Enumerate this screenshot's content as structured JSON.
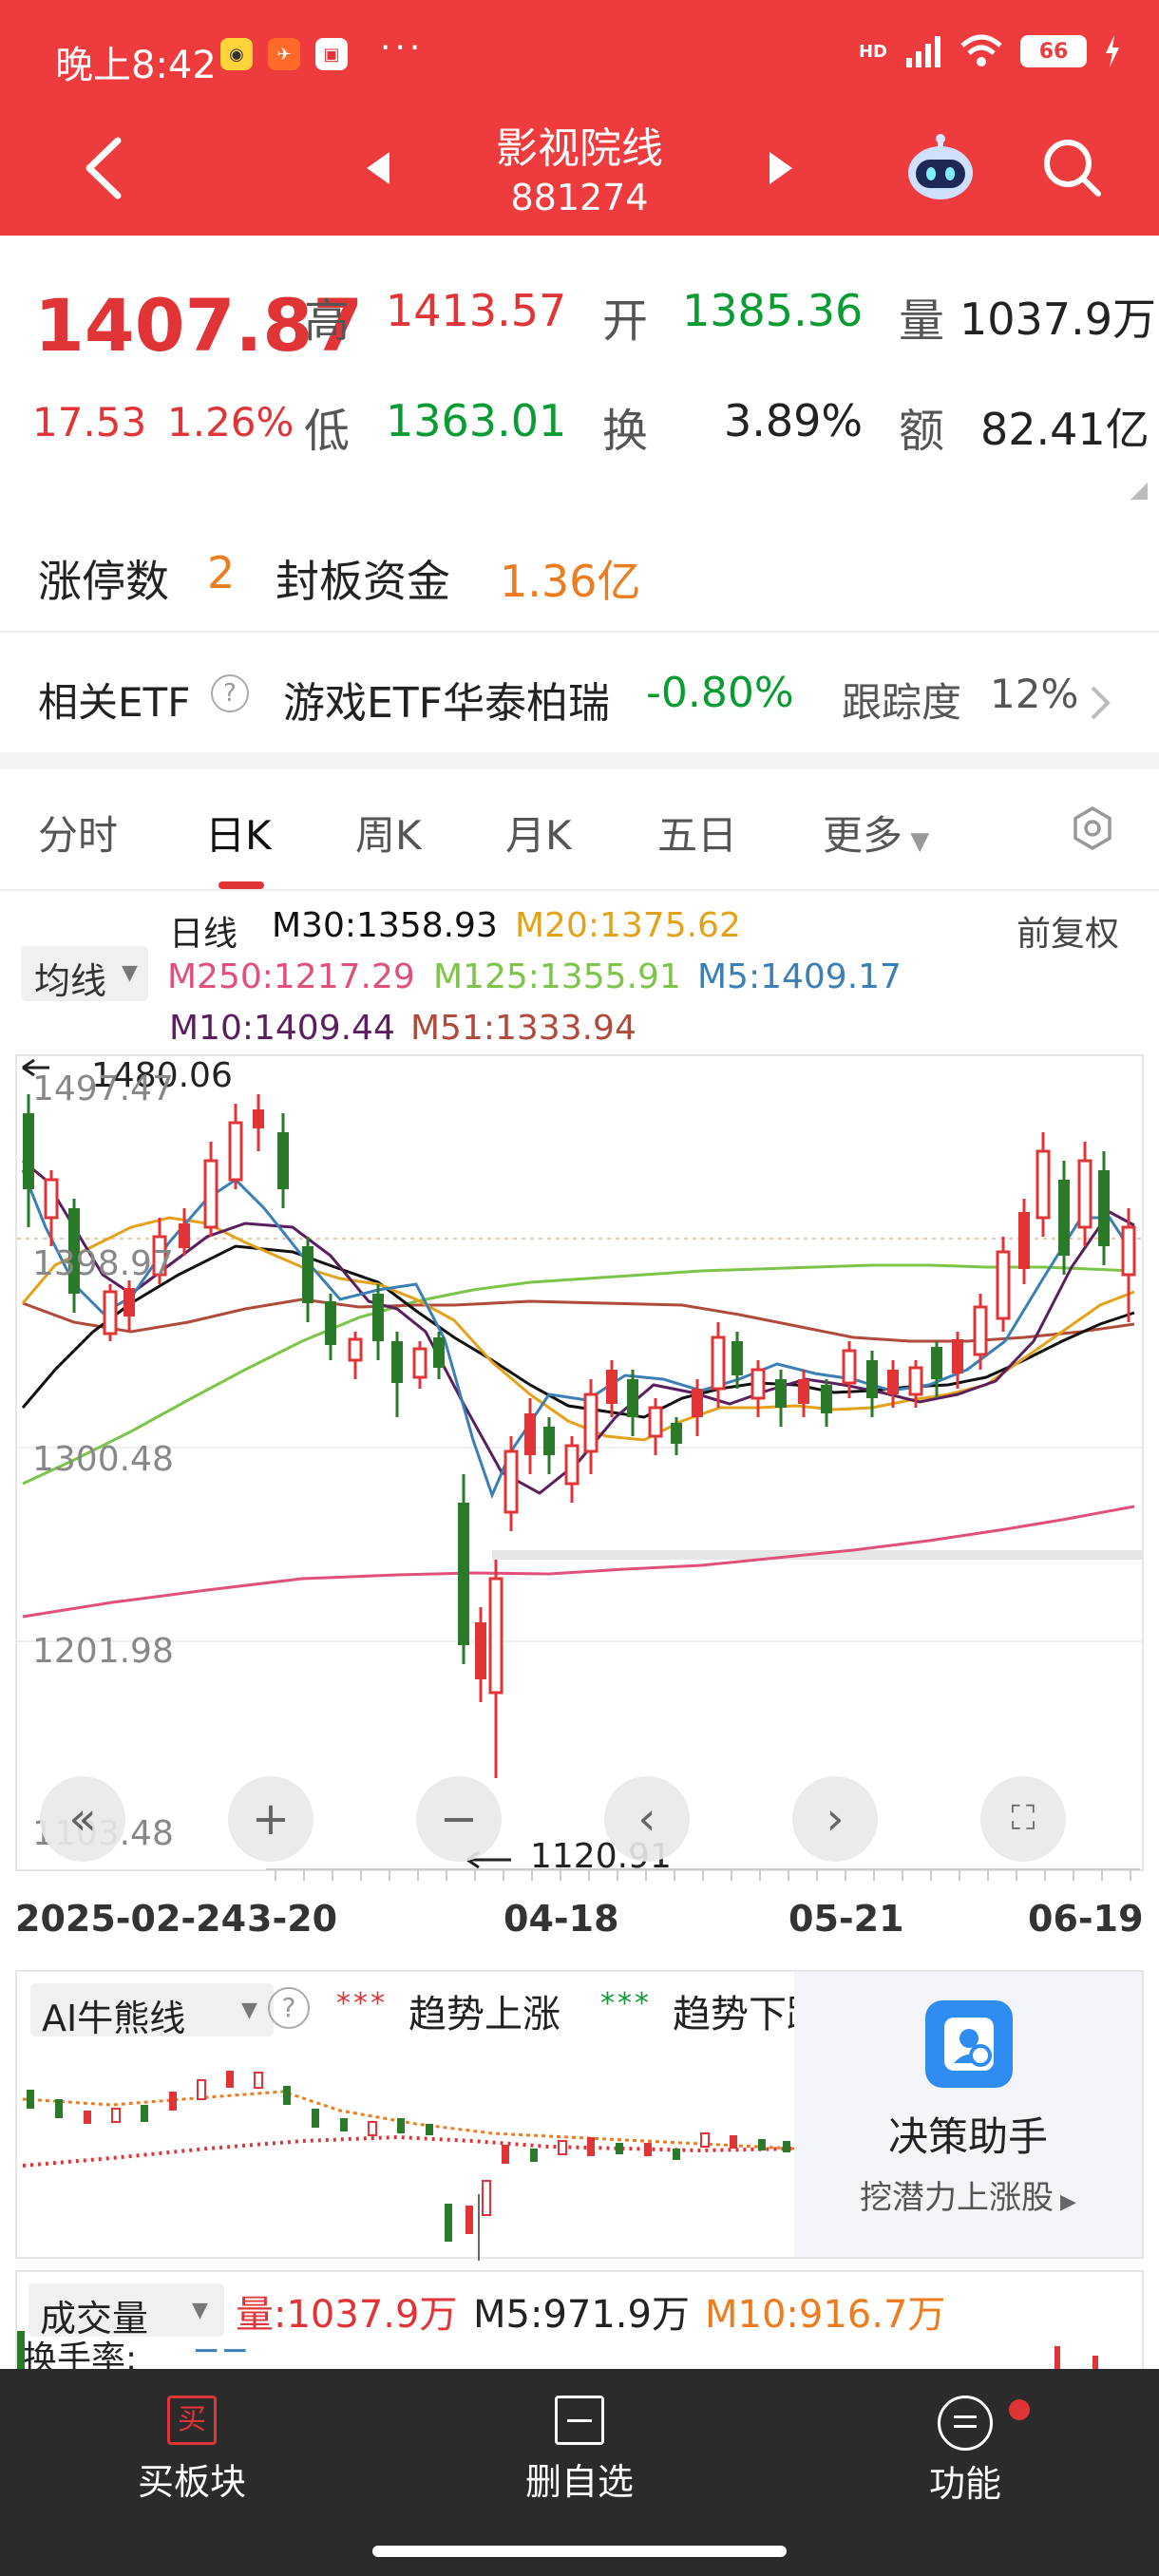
{
  "status": {
    "time": "晚上8:42",
    "more": "···",
    "network": "HD",
    "battery": "66"
  },
  "header": {
    "title": "影视院线",
    "code": "881274"
  },
  "quote": {
    "price": "1407.87",
    "change": "17.53",
    "change_pct": "1.26%",
    "high_label": "高",
    "high": "1413.57",
    "low_label": "低",
    "low": "1363.01",
    "open_label": "开",
    "open": "1385.36",
    "turnover_label": "换",
    "turnover": "3.89%",
    "volume_label": "量",
    "volume": "1037.9万",
    "amount_label": "额",
    "amount": "82.41亿"
  },
  "limit": {
    "count_label": "涨停数",
    "count": "2",
    "fund_label": "封板资金",
    "fund": "1.36亿"
  },
  "etf": {
    "label": "相关ETF",
    "help": "?",
    "name": "游戏ETF华泰柏瑞",
    "change": "-0.80%",
    "track_label": "跟踪度",
    "track": "12%"
  },
  "tabs": [
    "分时",
    "日K",
    "周K",
    "月K",
    "五日",
    "更多"
  ],
  "chart": {
    "ma_selector": "均线",
    "type_label": "日线",
    "adjust": "前复权",
    "m30": "M30:1358.93",
    "m20": "M20:1375.62",
    "m250": "M250:1217.29",
    "m125": "M125:1355.91",
    "m5": "M5:1409.17",
    "m10": "M10:1409.44",
    "m51": "M51:1333.94",
    "max_marker": "1480.06",
    "min_marker": "1120.91",
    "y_labels": [
      "1497.47",
      "1398.97",
      "1300.48",
      "1201.98",
      "1103.48"
    ],
    "x_labels": [
      "2025-02-24",
      "3-20",
      "04-18",
      "05-21",
      "06-19"
    ],
    "colors": {
      "m30": "#111111",
      "m20": "#e3a21a",
      "m250": "#e0507a",
      "m125": "#7cc44a",
      "m5": "#3a7fb5",
      "m10": "#5a1f5e",
      "m51": "#b04a3a",
      "up": "#e03437",
      "down": "#2a7a2a"
    }
  },
  "ai": {
    "selector": "AI牛熊线",
    "help": "?",
    "legend_up_marks": "***",
    "legend_up": "趋势上涨",
    "legend_down_marks": "***",
    "legend_down": "趋势下跌",
    "assistant_title": "决策助手",
    "assistant_sub": "挖潜力上涨股"
  },
  "volume": {
    "selector": "成交量",
    "vol": "量:1037.9万",
    "m5": "M5:971.9万",
    "m10": "M10:916.7万",
    "turnover_label": "换手率:"
  },
  "bottom": {
    "buy": "买板块",
    "buy_icon": "买",
    "remove": "删自选",
    "func": "功能"
  }
}
